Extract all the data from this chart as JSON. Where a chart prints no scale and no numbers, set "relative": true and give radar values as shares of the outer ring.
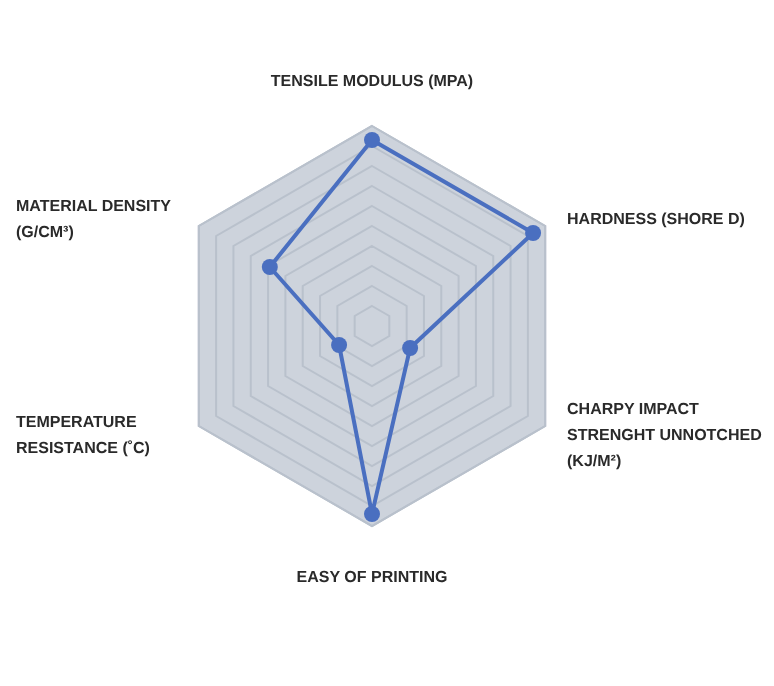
{
  "chart_data": {
    "type": "radar",
    "relative": true,
    "categories": [
      "TENSILE MODULUS (MPA)",
      "HARDNESS (SHORE D)",
      "CHARPY IMPACT STRENGHT UNNOTCHED (KJ/M²)",
      "EASY OF PRINTING",
      "TEMPERATURE RESISTANCE (˚C)",
      "MATERIAL DENSITY (G/CM³)"
    ],
    "series": [
      {
        "color": "#4a6fc0",
        "values": [
          0.93,
          0.93,
          0.22,
          0.94,
          0.19,
          0.59
        ]
      }
    ],
    "marker": "circle",
    "line_style": "solid",
    "grid": true,
    "legend": false
  }
}
